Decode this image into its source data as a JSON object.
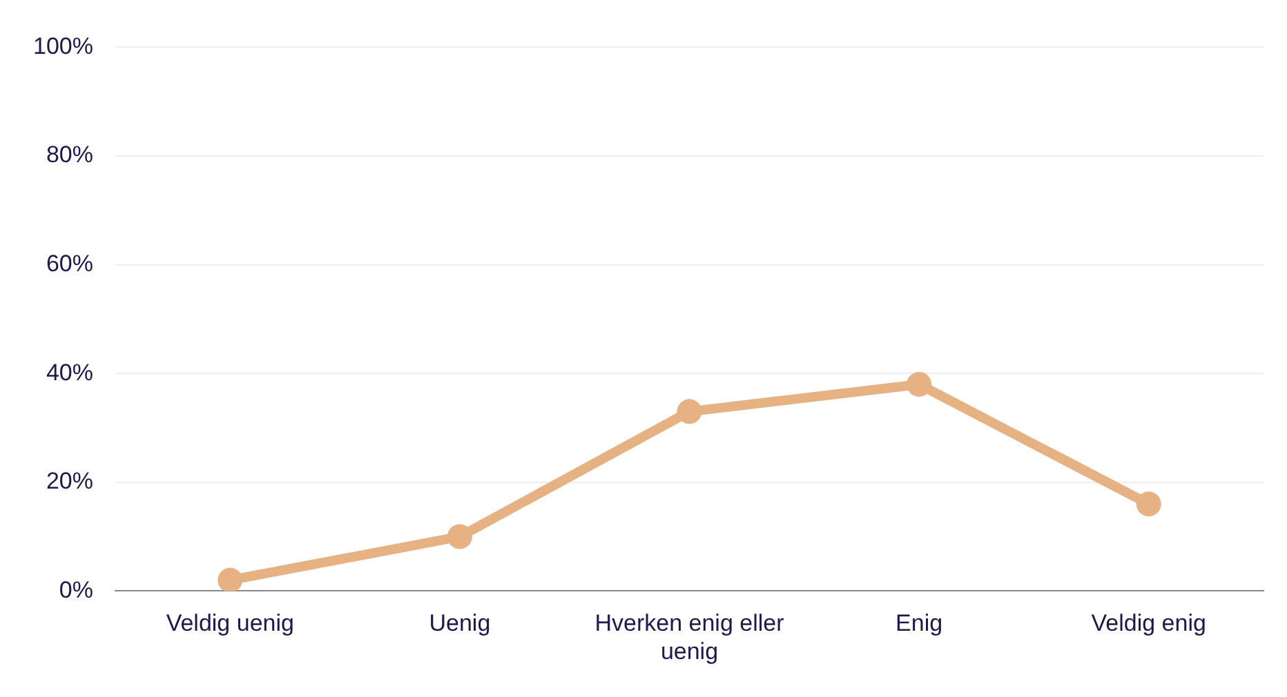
{
  "chart_data": {
    "type": "line",
    "categories": [
      "Veldig uenig",
      "Uenig",
      "Hverken enig eller uenig",
      "Enig",
      "Veldig enig"
    ],
    "series": [
      {
        "color": "#e6b283",
        "values": [
          2,
          10,
          33,
          38,
          16
        ]
      }
    ],
    "ylim": [
      0,
      100
    ],
    "yticks": [
      {
        "value": 0,
        "label": "0%"
      },
      {
        "value": 20,
        "label": "20%"
      },
      {
        "value": 40,
        "label": "40%"
      },
      {
        "value": 60,
        "label": "60%"
      },
      {
        "value": 80,
        "label": "80%"
      },
      {
        "value": 100,
        "label": "100%"
      }
    ],
    "grid": "y",
    "legend": false,
    "marker": "circle",
    "line_style": "solid"
  }
}
